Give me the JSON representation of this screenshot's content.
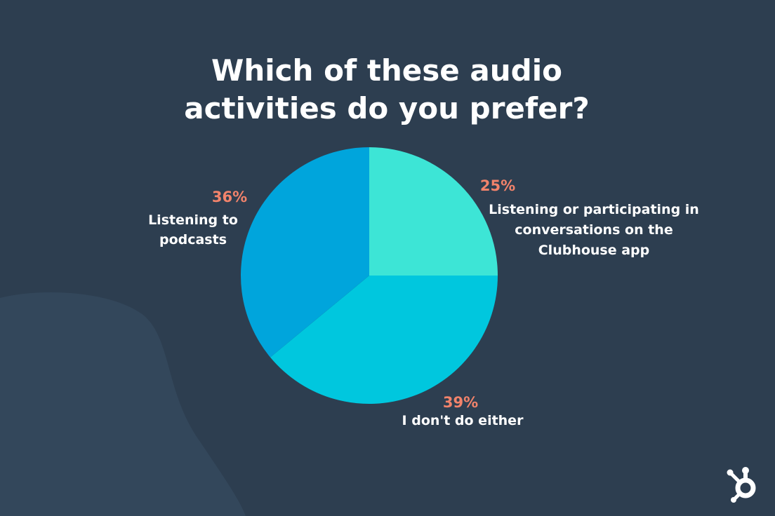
{
  "colors": {
    "background": "#2d3e50",
    "blob": "#33475b",
    "percent_label": "#f2836b",
    "text": "#ffffff",
    "logo": "#ffffff"
  },
  "logo": {
    "icon": "hubspot-sprocket-icon"
  },
  "chart_data": {
    "type": "pie",
    "title": [
      "Which of these audio",
      "activities do you prefer?"
    ],
    "start_angle_deg": 0,
    "direction": "clockwise",
    "legend": "none",
    "slices": [
      {
        "label": [
          "Listening or participating in",
          "conversations on the",
          "Clubhouse app"
        ],
        "value": 25,
        "value_label": "25%",
        "color": "#3de5d6"
      },
      {
        "label": [
          "I don't do either"
        ],
        "value": 39,
        "value_label": "39%",
        "color": "#00c7de"
      },
      {
        "label": [
          "Listening to",
          "podcasts"
        ],
        "value": 36,
        "value_label": "36%",
        "color": "#00a5dc"
      }
    ]
  }
}
